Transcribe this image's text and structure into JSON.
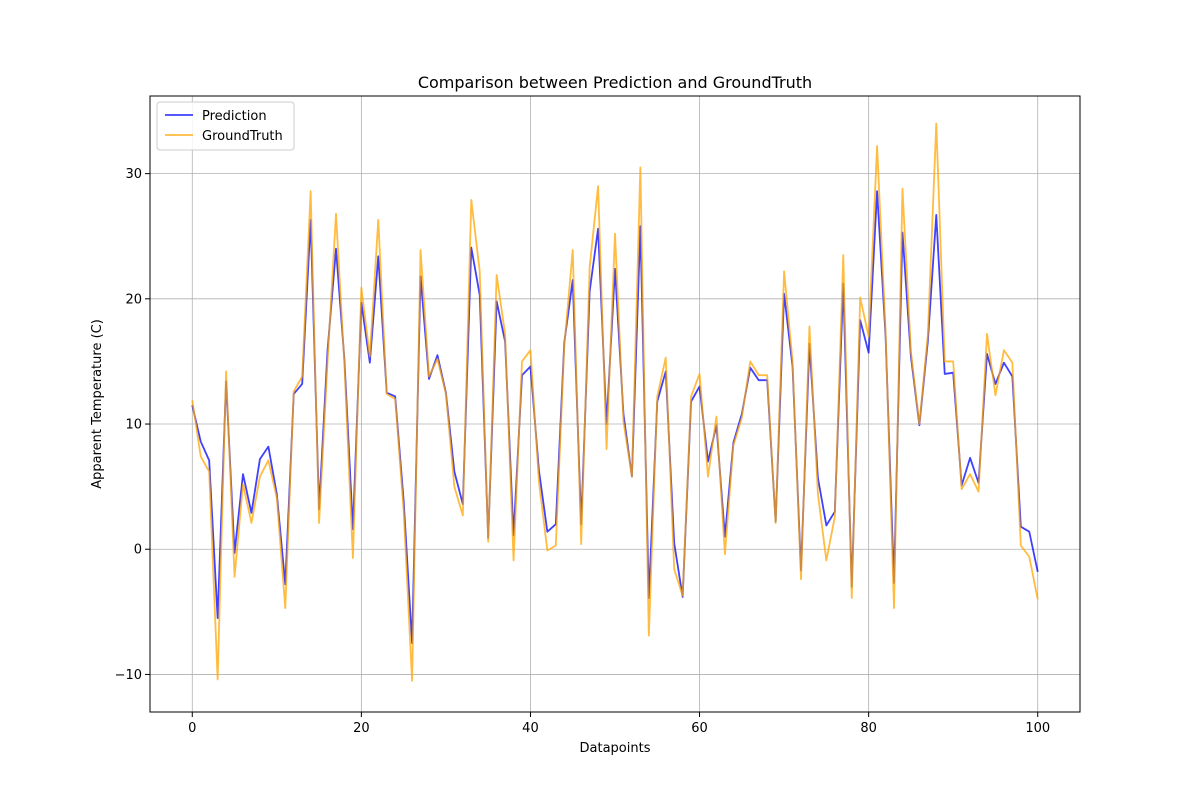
{
  "chart_data": {
    "type": "line",
    "title": "Comparison between Prediction and GroundTruth",
    "xlabel": "Datapoints",
    "ylabel": "Apparent Temperature (C)",
    "xlim": [
      -5,
      105
    ],
    "ylim": [
      -13,
      36.2
    ],
    "xticks": [
      0,
      20,
      40,
      60,
      80,
      100
    ],
    "yticks": [
      -10,
      0,
      10,
      20,
      30
    ],
    "grid": true,
    "legend_position": "upper-left",
    "series": [
      {
        "name": "Prediction",
        "color": "#0000ff",
        "opacity": 0.75,
        "values": [
          11.5,
          8.6,
          7.1,
          -5.5,
          13.4,
          -0.3,
          6.0,
          2.9,
          7.2,
          8.2,
          4.4,
          -2.8,
          12.4,
          13.2,
          26.3,
          3.2,
          15.9,
          24.0,
          15.1,
          1.6,
          19.7,
          14.9,
          23.4,
          12.5,
          12.2,
          3.9,
          -7.5,
          21.8,
          13.6,
          15.5,
          12.5,
          6.2,
          3.6,
          24.1,
          20.3,
          0.9,
          19.8,
          16.6,
          1.1,
          13.9,
          14.6,
          6.3,
          1.4,
          2.0,
          16.5,
          21.5,
          2.0,
          20.6,
          25.6,
          10.0,
          22.4,
          10.8,
          5.8,
          25.8,
          -3.9,
          11.8,
          14.2,
          0.5,
          -3.8,
          11.8,
          13.0,
          7.0,
          9.9,
          1.0,
          8.5,
          10.8,
          14.5,
          13.5,
          13.5,
          2.2,
          20.4,
          14.6,
          -1.7,
          16.4,
          5.7,
          1.9,
          3.0,
          21.2,
          -3.0,
          18.3,
          15.7,
          28.6,
          17.1,
          -2.7,
          25.3,
          15.4,
          9.9,
          16.6,
          26.7,
          14.0,
          14.1,
          5.1,
          7.3,
          5.3,
          15.6,
          13.2,
          14.9,
          13.8,
          1.8,
          1.4,
          -1.8
        ]
      },
      {
        "name": "GroundTruth",
        "color": "#ffa500",
        "opacity": 0.75,
        "values": [
          11.9,
          7.4,
          6.2,
          -10.4,
          14.2,
          -2.2,
          5.2,
          2.1,
          5.8,
          7.1,
          4.1,
          -4.7,
          12.6,
          13.8,
          28.6,
          2.1,
          15.0,
          26.8,
          14.7,
          -0.7,
          20.9,
          15.4,
          26.3,
          12.4,
          12.0,
          3.1,
          -10.5,
          23.9,
          13.8,
          15.2,
          12.4,
          5.0,
          2.7,
          27.9,
          22.2,
          0.6,
          21.9,
          17.2,
          -0.9,
          15.0,
          15.9,
          5.4,
          -0.1,
          0.3,
          16.2,
          23.9,
          0.4,
          22.5,
          29.0,
          8.0,
          25.2,
          10.2,
          5.8,
          30.5,
          -6.9,
          12.2,
          15.3,
          -1.6,
          -3.7,
          12.2,
          14.0,
          5.8,
          10.6,
          -0.4,
          8.3,
          10.5,
          15.0,
          13.9,
          13.9,
          2.1,
          22.2,
          15.0,
          -2.4,
          17.8,
          4.4,
          -0.9,
          2.6,
          23.5,
          -3.9,
          20.1,
          17.0,
          32.2,
          17.5,
          -4.7,
          28.8,
          15.8,
          10.0,
          17.1,
          34.0,
          15.0,
          15.0,
          4.8,
          6.0,
          4.6,
          17.2,
          12.3,
          15.9,
          14.9,
          0.3,
          -0.6,
          -4.0
        ]
      }
    ]
  }
}
